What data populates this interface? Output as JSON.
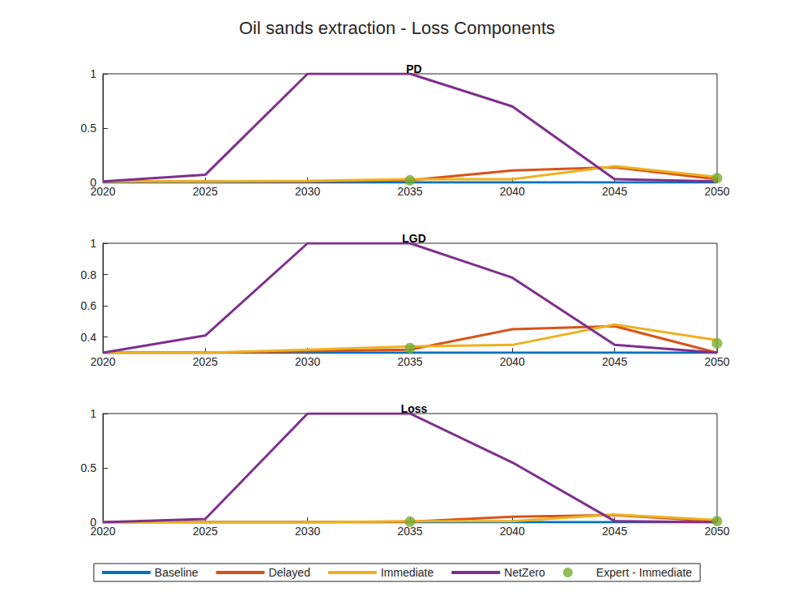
{
  "title": "Oil sands extraction - Loss Components",
  "legend": "bottom",
  "chart_data": [
    {
      "type": "line",
      "title": "PD",
      "x": [
        2020,
        2025,
        2030,
        2035,
        2040,
        2045,
        2050
      ],
      "xlim": [
        2020,
        2050
      ],
      "xticks": [
        2020,
        2025,
        2030,
        2035,
        2040,
        2045,
        2050
      ],
      "ylim": [
        0,
        1
      ],
      "yticks": [
        0,
        0.5,
        1
      ],
      "grid": false,
      "series": [
        {
          "name": "Baseline",
          "color": "#0072BD",
          "type": "line",
          "line_style": "solid",
          "values": [
            0,
            0,
            0,
            0,
            0,
            0,
            0
          ]
        },
        {
          "name": "Delayed",
          "color": "#D95319",
          "type": "line",
          "line_style": "solid",
          "values": [
            0.01,
            0.01,
            0.01,
            0.02,
            0.11,
            0.14,
            0.03
          ]
        },
        {
          "name": "Immediate",
          "color": "#EDB120",
          "type": "line",
          "line_style": "solid",
          "values": [
            0.01,
            0.01,
            0.015,
            0.03,
            0.03,
            0.15,
            0.05
          ]
        },
        {
          "name": "NetZero",
          "color": "#7E2F8E",
          "type": "line",
          "line_style": "solid",
          "values": [
            0.01,
            0.07,
            1,
            1,
            0.7,
            0.03,
            0.01
          ]
        },
        {
          "name": "Expert - Immediate",
          "color": "#77AC30",
          "type": "scatter",
          "marker": "circle",
          "values": [
            null,
            null,
            null,
            0.02,
            null,
            null,
            0.04
          ]
        }
      ]
    },
    {
      "type": "line",
      "title": "LGD",
      "x": [
        2020,
        2025,
        2030,
        2035,
        2040,
        2045,
        2050
      ],
      "xlim": [
        2020,
        2050
      ],
      "xticks": [
        2020,
        2025,
        2030,
        2035,
        2040,
        2045,
        2050
      ],
      "ylim": [
        0.3,
        1
      ],
      "yticks": [
        0.4,
        0.6,
        0.8,
        1
      ],
      "grid": false,
      "series": [
        {
          "name": "Baseline",
          "color": "#0072BD",
          "type": "line",
          "line_style": "solid",
          "values": [
            0.3,
            0.3,
            0.3,
            0.3,
            0.3,
            0.3,
            0.3
          ]
        },
        {
          "name": "Delayed",
          "color": "#D95319",
          "type": "line",
          "line_style": "solid",
          "values": [
            0.3,
            0.3,
            0.31,
            0.32,
            0.45,
            0.47,
            0.3
          ]
        },
        {
          "name": "Immediate",
          "color": "#EDB120",
          "type": "line",
          "line_style": "solid",
          "values": [
            0.3,
            0.3,
            0.32,
            0.34,
            0.35,
            0.48,
            0.38
          ]
        },
        {
          "name": "NetZero",
          "color": "#7E2F8E",
          "type": "line",
          "line_style": "solid",
          "values": [
            0.3,
            0.41,
            1,
            1,
            0.78,
            0.35,
            0.3
          ]
        },
        {
          "name": "Expert - Immediate",
          "color": "#77AC30",
          "type": "scatter",
          "marker": "circle",
          "values": [
            null,
            null,
            null,
            0.33,
            null,
            null,
            0.36
          ]
        }
      ]
    },
    {
      "type": "line",
      "title": "Loss",
      "x": [
        2020,
        2025,
        2030,
        2035,
        2040,
        2045,
        2050
      ],
      "xlim": [
        2020,
        2050
      ],
      "xticks": [
        2020,
        2025,
        2030,
        2035,
        2040,
        2045,
        2050
      ],
      "ylim": [
        0,
        1
      ],
      "yticks": [
        0,
        0.5,
        1
      ],
      "grid": false,
      "series": [
        {
          "name": "Baseline",
          "color": "#0072BD",
          "type": "line",
          "line_style": "solid",
          "values": [
            0,
            0,
            0,
            0,
            0,
            0,
            0
          ]
        },
        {
          "name": "Delayed",
          "color": "#D95319",
          "type": "line",
          "line_style": "solid",
          "values": [
            0,
            0,
            0,
            0.005,
            0.05,
            0.065,
            0.01
          ]
        },
        {
          "name": "Immediate",
          "color": "#EDB120",
          "type": "line",
          "line_style": "solid",
          "values": [
            0,
            0,
            0,
            0.01,
            0.01,
            0.07,
            0.02
          ]
        },
        {
          "name": "NetZero",
          "color": "#7E2F8E",
          "type": "line",
          "line_style": "solid",
          "values": [
            0,
            0.03,
            1,
            1,
            0.55,
            0.01,
            0
          ]
        },
        {
          "name": "Expert - Immediate",
          "color": "#77AC30",
          "type": "scatter",
          "marker": "circle",
          "values": [
            null,
            null,
            null,
            0.005,
            null,
            null,
            0.01
          ]
        }
      ]
    }
  ]
}
